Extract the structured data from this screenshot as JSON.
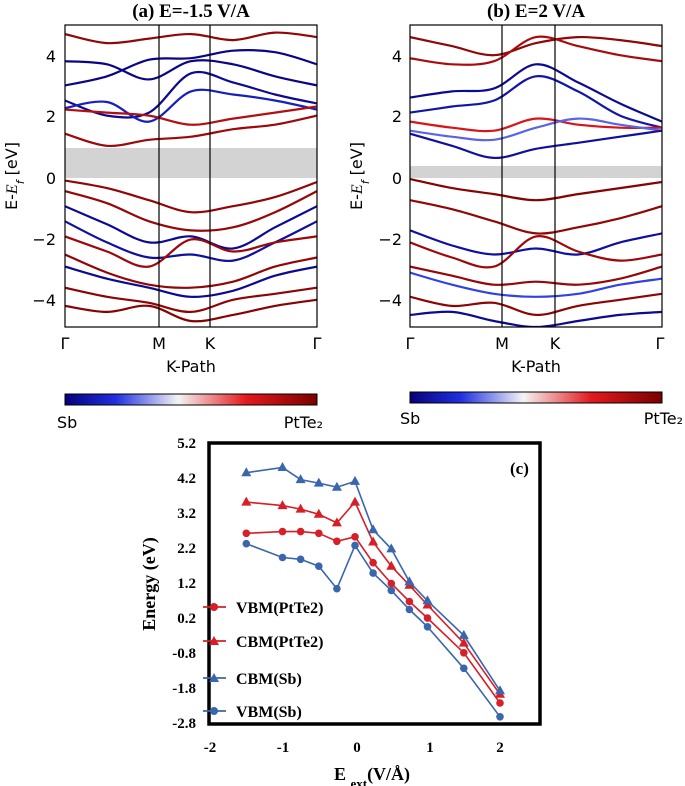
{
  "colors": {
    "sb": "#07007a",
    "sb_mid": "#1f2fe0",
    "neutral": "#f4f4f4",
    "pt_mid": "#e3191d",
    "ptte2": "#7a0000",
    "gap": "#d3d3d3",
    "series_red": "#d61f26",
    "series_blue": "#3a66ad"
  },
  "panels": [
    {
      "title": "(a) E=-1.5 V/A",
      "ylabel": "E-E_f [eV]",
      "ylabel_main": "E-",
      "ylabel_sym": "E",
      "ylabel_sub": "f",
      "ylabel_unit": " [eV]",
      "xlabel": "K-Path",
      "kpoints": [
        "Γ",
        "M",
        "K",
        "Γ"
      ],
      "yticks": [
        "4",
        "2",
        "0",
        "−2",
        "−4"
      ],
      "colorbar_left": "Sb",
      "colorbar_right": "PtTe₂"
    },
    {
      "title": "(b) E=2 V/A",
      "ylabel": "E-E_f [eV]",
      "ylabel_main": "E-",
      "ylabel_sym": "E",
      "ylabel_sub": "f",
      "ylabel_unit": " [eV]",
      "xlabel": "K-Path",
      "kpoints": [
        "Γ",
        "M",
        "K",
        "Γ"
      ],
      "yticks": [
        "4",
        "2",
        "0",
        "−2",
        "−4"
      ],
      "colorbar_left": "Sb",
      "colorbar_right": "PtTe₂"
    }
  ],
  "chart_data": [
    {
      "panel": "a",
      "type": "line",
      "title": "(a) E=-1.5 V/A",
      "xlabel": "K-Path",
      "ylabel": "E-E_f [eV]",
      "ylim": [
        -5,
        5
      ],
      "k_ticks": [
        0,
        0.5,
        0.7,
        1
      ],
      "gap_region": [
        0,
        1
      ],
      "bands": [
        {
          "w": 0.9,
          "y": [
            4.7,
            4.4,
            4.55,
            4.7,
            4.5,
            4.75,
            4.6
          ]
        },
        {
          "w": -0.95,
          "y": [
            3.0,
            3.3,
            3.85,
            3.9,
            4.15,
            4.1,
            3.7
          ]
        },
        {
          "w": -0.95,
          "y": [
            3.8,
            3.7,
            3.2,
            3.8,
            3.7,
            3.3,
            3.0
          ]
        },
        {
          "w": -0.9,
          "y": [
            2.5,
            2.0,
            2.1,
            3.4,
            3.1,
            2.7,
            2.4
          ]
        },
        {
          "w": -0.7,
          "y": [
            2.25,
            2.45,
            1.8,
            2.8,
            2.7,
            2.5,
            2.2
          ]
        },
        {
          "w": 0.75,
          "y": [
            2.2,
            2.1,
            2.0,
            1.7,
            1.9,
            2.1,
            2.3
          ]
        },
        {
          "w": 0.85,
          "y": [
            1.4,
            1.0,
            1.2,
            1.3,
            1.55,
            1.7,
            2.0
          ]
        },
        {
          "w": 0.9,
          "y": [
            -0.15,
            -0.4,
            -0.8,
            -1.2,
            -1.0,
            -0.7,
            -0.2
          ]
        },
        {
          "w": 0.88,
          "y": [
            -0.5,
            -0.9,
            -1.5,
            -1.8,
            -1.7,
            -1.2,
            -0.5
          ]
        },
        {
          "w": -0.9,
          "y": [
            -1.0,
            -1.6,
            -2.2,
            -2.0,
            -2.4,
            -1.7,
            -1.0
          ]
        },
        {
          "w": -0.85,
          "y": [
            -1.5,
            -2.2,
            -2.7,
            -2.6,
            -2.8,
            -2.2,
            -1.5
          ]
        },
        {
          "w": 0.85,
          "y": [
            -2.0,
            -2.5,
            -3.0,
            -2.1,
            -2.5,
            -2.2,
            -2.0
          ]
        },
        {
          "w": 0.9,
          "y": [
            -2.6,
            -3.2,
            -3.6,
            -3.7,
            -3.5,
            -3.0,
            -2.7
          ]
        },
        {
          "w": -0.9,
          "y": [
            -3.0,
            -3.4,
            -3.7,
            -4.0,
            -3.8,
            -3.3,
            -3.0
          ]
        },
        {
          "w": 0.92,
          "y": [
            -3.7,
            -4.0,
            -4.2,
            -4.5,
            -4.1,
            -3.9,
            -3.7
          ]
        },
        {
          "w": 0.95,
          "y": [
            -4.3,
            -4.5,
            -4.3,
            -4.8,
            -4.6,
            -4.3,
            -4.1
          ]
        }
      ]
    },
    {
      "panel": "b",
      "type": "line",
      "title": "(b) E=2 V/A",
      "xlabel": "K-Path",
      "ylabel": "E-E_f [eV]",
      "ylim": [
        -5,
        5
      ],
      "k_ticks": [
        0,
        0.5,
        0.7,
        1
      ],
      "gap_region": [
        0,
        0.4
      ],
      "bands": [
        {
          "w": 0.9,
          "y": [
            4.6,
            4.3,
            4.0,
            4.4,
            4.6,
            4.5,
            4.3
          ]
        },
        {
          "w": 0.8,
          "y": [
            3.9,
            3.7,
            3.8,
            4.6,
            4.3,
            4.0,
            3.8
          ]
        },
        {
          "w": -0.9,
          "y": [
            2.6,
            2.8,
            2.9,
            3.7,
            3.1,
            2.4,
            1.8
          ]
        },
        {
          "w": -0.8,
          "y": [
            2.1,
            2.3,
            2.5,
            3.3,
            2.8,
            2.0,
            1.6
          ]
        },
        {
          "w": 0.6,
          "y": [
            1.8,
            1.6,
            1.5,
            1.9,
            1.7,
            1.6,
            1.6
          ]
        },
        {
          "w": -0.4,
          "y": [
            1.5,
            1.3,
            1.2,
            1.6,
            1.9,
            1.7,
            1.5
          ]
        },
        {
          "w": -0.85,
          "y": [
            1.4,
            1.0,
            0.6,
            0.9,
            1.1,
            1.3,
            1.5
          ]
        },
        {
          "w": 0.95,
          "y": [
            -0.1,
            -0.4,
            -0.6,
            -0.8,
            -0.6,
            -0.4,
            -0.2
          ]
        },
        {
          "w": 0.9,
          "y": [
            -0.8,
            -1.1,
            -1.5,
            -1.9,
            -1.7,
            -1.4,
            -1.0
          ]
        },
        {
          "w": -0.85,
          "y": [
            -1.8,
            -2.3,
            -2.6,
            -2.4,
            -2.6,
            -2.2,
            -1.9
          ]
        },
        {
          "w": 0.85,
          "y": [
            -2.2,
            -2.7,
            -3.0,
            -2.0,
            -2.5,
            -2.8,
            -2.6
          ]
        },
        {
          "w": 0.88,
          "y": [
            -3.0,
            -3.3,
            -3.6,
            -3.5,
            -3.6,
            -3.4,
            -3.0
          ]
        },
        {
          "w": -0.5,
          "y": [
            -3.2,
            -3.6,
            -3.9,
            -4.0,
            -3.9,
            -3.6,
            -3.4
          ]
        },
        {
          "w": 0.92,
          "y": [
            -4.0,
            -4.3,
            -4.2,
            -4.6,
            -4.3,
            -4.1,
            -3.9
          ]
        },
        {
          "w": -0.9,
          "y": [
            -4.6,
            -4.5,
            -4.8,
            -5.0,
            -4.8,
            -4.6,
            -4.5
          ]
        }
      ]
    },
    {
      "panel": "c",
      "type": "line",
      "panel_label": "(c)",
      "xlabel_main": "E ",
      "xlabel_sub": "ext",
      "xlabel_rest": "(V/Å)",
      "ylabel": "Energy (eV)",
      "xlim": [
        -2,
        2
      ],
      "ylim": [
        -2.8,
        5.2
      ],
      "xticks": [
        -2,
        -1,
        0,
        1,
        2
      ],
      "yticks": [
        5.2,
        4.2,
        3.2,
        2.2,
        1.2,
        0.2,
        -0.8,
        -1.8,
        -2.8
      ],
      "xtick_labels": [
        "-2",
        "-1",
        "0",
        "1",
        "2"
      ],
      "ytick_labels": [
        "5.2",
        "4.2",
        "3.2",
        "2.2",
        "1.2",
        "0.2",
        "-0.8",
        "-1.8",
        "-2.8"
      ],
      "x": [
        -1.5,
        -1.0,
        -0.75,
        -0.5,
        -0.25,
        0,
        0.25,
        0.5,
        0.75,
        1.0,
        1.5,
        2.0
      ],
      "series": [
        {
          "name": "VBM(PtTe2)",
          "marker": "circle",
          "color": "#d61f26",
          "values": [
            2.65,
            2.7,
            2.7,
            2.65,
            2.42,
            2.55,
            1.8,
            1.2,
            0.68,
            0.2,
            -0.8,
            -2.25
          ]
        },
        {
          "name": "CBM(PtTe2)",
          "marker": "triangle",
          "color": "#d61f26",
          "values": [
            3.55,
            3.45,
            3.35,
            3.2,
            2.95,
            3.55,
            2.4,
            1.7,
            1.15,
            0.58,
            -0.52,
            -2.0
          ]
        },
        {
          "name": "CBM(Sb)",
          "marker": "triangle",
          "color": "#3a66ad",
          "values": [
            4.4,
            4.55,
            4.2,
            4.1,
            3.98,
            4.15,
            2.75,
            2.2,
            1.25,
            0.7,
            -0.3,
            -1.9
          ]
        },
        {
          "name": "VBM(Sb)",
          "marker": "circle",
          "color": "#3a66ad",
          "values": [
            2.35,
            1.95,
            1.9,
            1.7,
            1.05,
            2.3,
            1.5,
            1.0,
            0.45,
            -0.05,
            -1.25,
            -2.65
          ]
        }
      ]
    }
  ]
}
